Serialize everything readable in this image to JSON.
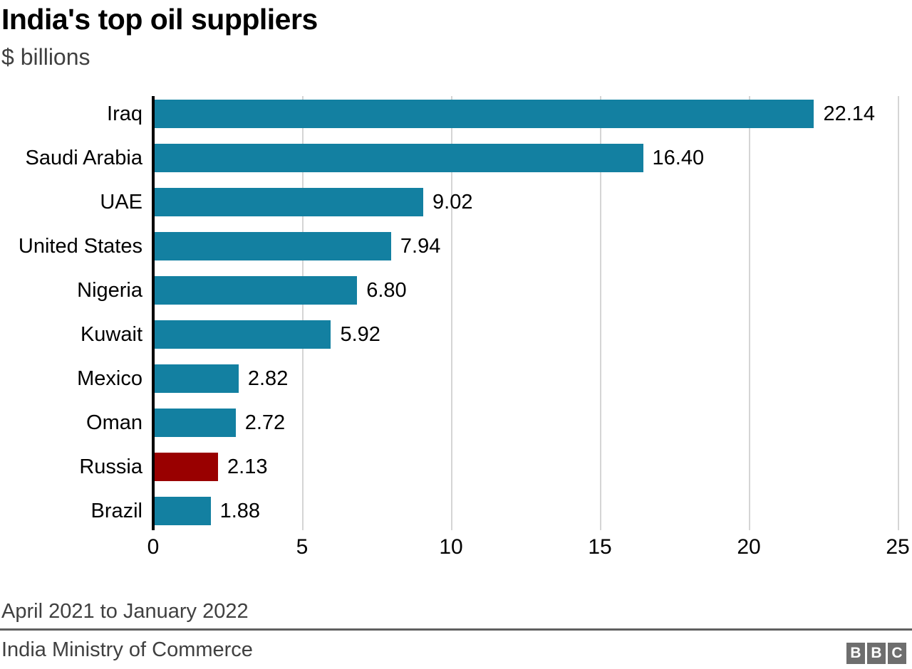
{
  "chart_data": {
    "type": "bar",
    "orientation": "horizontal",
    "title": "India's top oil suppliers",
    "subtitle": "$ billions",
    "categories": [
      "Iraq",
      "Saudi Arabia",
      "UAE",
      "United States",
      "Nigeria",
      "Kuwait",
      "Mexico",
      "Oman",
      "Russia",
      "Brazil"
    ],
    "values": [
      22.14,
      16.4,
      9.02,
      7.94,
      6.8,
      5.92,
      2.82,
      2.72,
      2.13,
      1.88
    ],
    "value_labels": [
      "22.14",
      "16.40",
      "9.02",
      "7.94",
      "6.80",
      "5.92",
      "2.82",
      "2.72",
      "2.13",
      "1.88"
    ],
    "highlight_category": "Russia",
    "xlim": [
      0,
      25
    ],
    "x_ticks": [
      0,
      5,
      10,
      15,
      20,
      25
    ],
    "grid": "vertical-only",
    "legend": "none",
    "footnote": "April 2021 to January 2022",
    "source": "India Ministry of Commerce"
  },
  "colors": {
    "bar_default": "#1380a1",
    "bar_highlight": "#990000",
    "gridline": "#d5d5d5",
    "axis": "#000000",
    "subtitle_text": "#404040",
    "divider": "#606060",
    "logo_block": "#6e6e6e"
  },
  "branding": {
    "logo_letters": [
      "B",
      "B",
      "C"
    ]
  }
}
